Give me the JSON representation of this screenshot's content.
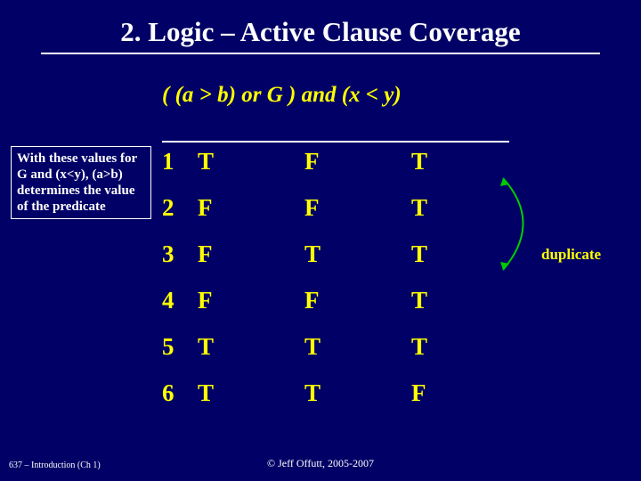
{
  "title": "2. Logic – Active Clause Coverage",
  "predicate": "( (a > b) or G ) and (x < y)",
  "note": "With these values for G and (x<y), (a>b) determines the value of the predicate",
  "table": {
    "rows": [
      {
        "idx": "1",
        "c1": "T",
        "c2": "F",
        "c3": "T"
      },
      {
        "idx": "2",
        "c1": "F",
        "c2": "F",
        "c3": "T"
      },
      {
        "idx": "3",
        "c1": "F",
        "c2": "T",
        "c3": "T"
      },
      {
        "idx": "4",
        "c1": "F",
        "c2": "F",
        "c3": "T"
      },
      {
        "idx": "5",
        "c1": "T",
        "c2": "T",
        "c3": "T"
      },
      {
        "idx": "6",
        "c1": "T",
        "c2": "T",
        "c3": "F"
      }
    ]
  },
  "duplicate_label": "duplicate",
  "arc_color": "#00cc00",
  "footer_left": "637 – Introduction (Ch 1)",
  "footer_center": "© Jeff Offutt, 2005-2007"
}
